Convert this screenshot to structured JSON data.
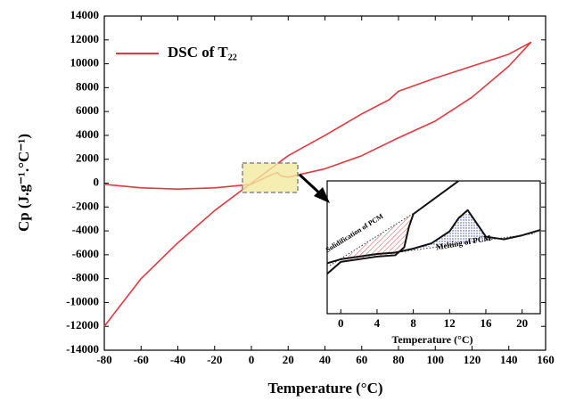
{
  "chart_data": [
    {
      "type": "line",
      "xlabel": "Temperature (°C)",
      "ylabel": "Cp (J.g⁻¹.°C⁻¹)",
      "x": [
        -80,
        -60,
        -40,
        -20,
        0,
        20,
        40,
        60,
        75,
        80,
        100,
        120,
        140,
        152,
        140,
        120,
        100,
        80,
        60,
        40,
        20,
        16,
        14,
        8,
        0,
        -20,
        -40,
        -60,
        -80
      ],
      "series": [
        {
          "name": "DSC of T₂₂",
          "color": "#e8383d",
          "values": [
            -12000,
            -8000,
            -5000,
            -2300,
            0,
            2300,
            4000,
            5800,
            7000,
            7700,
            8800,
            9800,
            10800,
            11800,
            9800,
            7200,
            5200,
            3800,
            2300,
            1200,
            500,
            600,
            900,
            500,
            -100,
            -400,
            -500,
            -400,
            -100
          ]
        }
      ],
      "xlim": [
        -80,
        160
      ],
      "xticks": [
        -80,
        -60,
        -40,
        -20,
        0,
        20,
        40,
        60,
        80,
        100,
        120,
        140,
        160
      ],
      "ylim": [
        -14000,
        14000
      ],
      "yticks": [
        -14000,
        -12000,
        -10000,
        -8000,
        -6000,
        -4000,
        -2000,
        0,
        2000,
        4000,
        6000,
        8000,
        10000,
        12000,
        14000
      ],
      "legend": "upper left"
    },
    {
      "type": "line",
      "xlabel": "Temperature (°C)",
      "annotations": [
        "Solidification of PCM",
        "Melting of PCM"
      ],
      "series": [
        {
          "color": "#111111",
          "x": [
            -1.5,
            0,
            4,
            6,
            8,
            10,
            12,
            13,
            14,
            15,
            16,
            18,
            20,
            22
          ],
          "values": [
            3.8,
            4.1,
            4.5,
            4.6,
            4.9,
            5.3,
            6.2,
            7.2,
            7.8,
            6.8,
            5.8,
            5.6,
            5.9,
            6.3
          ]
        },
        {
          "color": "#111111",
          "x": [
            -1.5,
            0,
            4,
            6,
            7,
            7.5,
            8,
            10,
            13
          ],
          "values": [
            3.0,
            3.9,
            4.3,
            4.4,
            5.0,
            6.5,
            7.5,
            8.5,
            10
          ]
        }
      ],
      "xlim": [
        -1.5,
        22
      ],
      "xticks": [
        0,
        4,
        8,
        12,
        16,
        20
      ],
      "ylim": [
        0,
        10
      ]
    }
  ]
}
